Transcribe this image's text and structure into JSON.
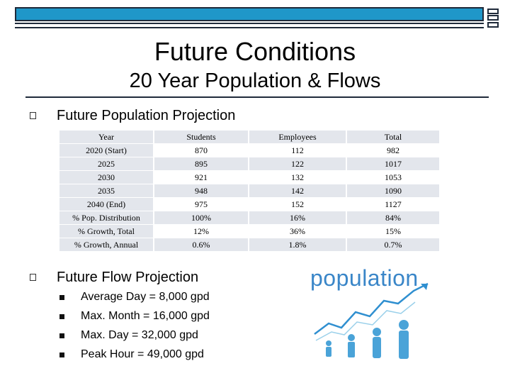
{
  "header": {
    "title": "Future Conditions",
    "subtitle": "20 Year Population & Flows"
  },
  "section1": {
    "heading": "Future Population Projection",
    "table": {
      "columns": [
        "Year",
        "Students",
        "Employees",
        "Total"
      ],
      "rows": [
        [
          "2020 (Start)",
          "870",
          "112",
          "982"
        ],
        [
          "2025",
          "895",
          "122",
          "1017"
        ],
        [
          "2030",
          "921",
          "132",
          "1053"
        ],
        [
          "2035",
          "948",
          "142",
          "1090"
        ],
        [
          "2040 (End)",
          "975",
          "152",
          "1127"
        ],
        [
          "% Pop. Distribution",
          "100%",
          "16%",
          "84%"
        ],
        [
          "% Growth, Total",
          "12%",
          "36%",
          "15%"
        ],
        [
          "% Growth, Annual",
          "0.6%",
          "1.8%",
          "0.7%"
        ]
      ]
    }
  },
  "section2": {
    "heading": "Future Flow Projection",
    "items": [
      "Average Day = 8,000 gpd",
      "Max. Month = 16,000 gpd",
      "Max. Day = 32,000 gpd",
      "Peak Hour = 49,000 gpd"
    ]
  },
  "graphic": {
    "word": "population",
    "word_color": "#3a86c8",
    "figure_color": "#4aa3d8",
    "arrow_color": "#2f8fd0"
  },
  "colors": {
    "bar": "#1f97c9",
    "dark": "#1f2a3a",
    "row_shade": "#e3e6ec"
  }
}
